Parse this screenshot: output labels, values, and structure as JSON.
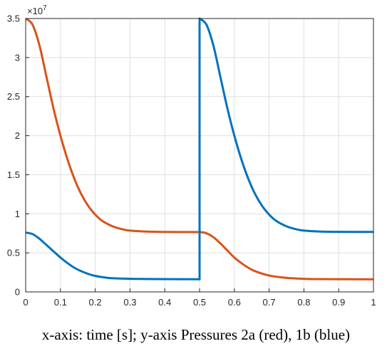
{
  "caption": "x-axis: time [s]; y-axis Pressures 2a (red), 1b (blue)",
  "chart_data": {
    "type": "line",
    "title": "",
    "xlabel": "",
    "ylabel": "",
    "xlim": [
      0,
      1
    ],
    "ylim": [
      0,
      35000000
    ],
    "y_exponent_label": "×10",
    "y_exponent_power": "7",
    "x_ticks": [
      0,
      0.1,
      0.2,
      0.3,
      0.4,
      0.5,
      0.6,
      0.7,
      0.8,
      0.9,
      1
    ],
    "x_tick_labels": [
      "0",
      "0.1",
      "0.2",
      "0.3",
      "0.4",
      "0.5",
      "0.6",
      "0.7",
      "0.8",
      "0.9",
      "1"
    ],
    "y_ticks": [
      0,
      5000000,
      10000000,
      15000000,
      20000000,
      25000000,
      30000000,
      35000000
    ],
    "y_tick_labels": [
      "0",
      "0.5",
      "1",
      "1.5",
      "2",
      "2.5",
      "3",
      "3.5"
    ],
    "grid": true,
    "series": [
      {
        "color": "#D95319",
        "x": [
          0,
          0.02,
          0.04,
          0.06,
          0.08,
          0.1,
          0.12,
          0.14,
          0.16,
          0.18,
          0.2,
          0.22,
          0.25,
          0.28,
          0.3,
          0.35,
          0.4,
          0.45,
          0.5,
          0.52,
          0.54,
          0.56,
          0.58,
          0.6,
          0.62,
          0.64,
          0.66,
          0.7,
          0.75,
          0.8,
          0.85,
          0.9,
          0.95,
          1.0
        ],
        "y": [
          35000000,
          34200000,
          31500000,
          27500000,
          23500000,
          20000000,
          17000000,
          14500000,
          12500000,
          11000000,
          9900000,
          9100000,
          8400000,
          8000000,
          7850000,
          7720000,
          7680000,
          7670000,
          7660000,
          7500000,
          7000000,
          6200000,
          5300000,
          4400000,
          3700000,
          3100000,
          2650000,
          2100000,
          1800000,
          1680000,
          1640000,
          1630000,
          1620000,
          1620000
        ]
      },
      {
        "color": "#0072BD",
        "x": [
          0,
          0.02,
          0.04,
          0.06,
          0.08,
          0.1,
          0.12,
          0.14,
          0.16,
          0.18,
          0.2,
          0.22,
          0.25,
          0.3,
          0.35,
          0.4,
          0.45,
          0.5,
          0.5,
          0.52,
          0.54,
          0.56,
          0.58,
          0.6,
          0.62,
          0.64,
          0.66,
          0.68,
          0.7,
          0.72,
          0.75,
          0.78,
          0.8,
          0.85,
          0.9,
          0.95,
          1.0
        ],
        "y": [
          7600000,
          7400000,
          6800000,
          6000000,
          5200000,
          4400000,
          3700000,
          3100000,
          2650000,
          2300000,
          2050000,
          1900000,
          1750000,
          1680000,
          1650000,
          1640000,
          1630000,
          1620000,
          35000000,
          34200000,
          31500000,
          27500000,
          23500000,
          20000000,
          17000000,
          14500000,
          12500000,
          11000000,
          9900000,
          9100000,
          8400000,
          8000000,
          7850000,
          7720000,
          7690000,
          7680000,
          7680000
        ]
      }
    ]
  }
}
